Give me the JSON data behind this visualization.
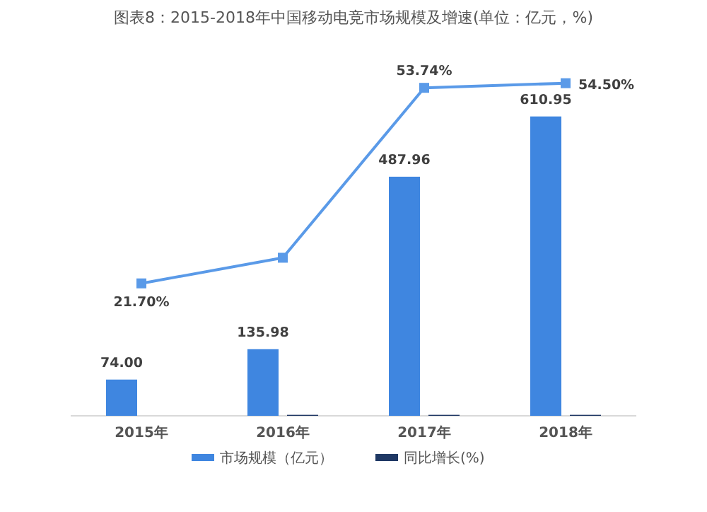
{
  "chart_data": {
    "type": "bar",
    "title": "图表8：2015-2018年中国移动电竞市场规模及增速(单位：亿元，%)",
    "categories": [
      "2015年",
      "2016年",
      "2017年",
      "2018年"
    ],
    "legend": "bottom",
    "grid": false,
    "series": [
      {
        "name": "市场规模（亿元）",
        "color": "#3f86e0",
        "values": [
          74.0,
          135.98,
          487.96,
          610.95
        ],
        "value_labels": [
          "74.00",
          "135.98",
          "487.96",
          "610.95"
        ]
      },
      {
        "name": "同比增长(%)",
        "color": "#1f3864",
        "values": [
          null,
          2,
          2,
          2
        ]
      },
      {
        "type": "line",
        "axis": "y2",
        "color": "#5a9ae8",
        "marker": "square",
        "values": [
          21.7,
          25.9,
          53.74,
          54.5
        ],
        "value_labels": [
          "21.70%",
          null,
          "53.74%",
          "54.50%"
        ]
      }
    ]
  }
}
